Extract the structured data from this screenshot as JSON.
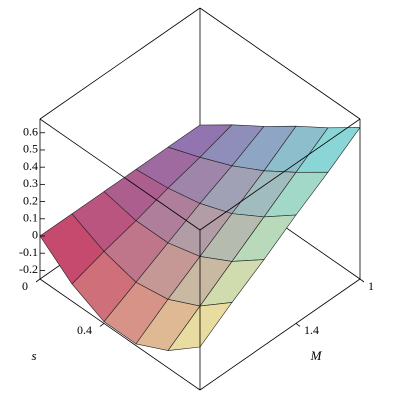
{
  "chart_data": {
    "type": "surface",
    "x_label": "s",
    "y_label": "M",
    "x": [
      0,
      0.2,
      0.4,
      0.6,
      0.8,
      1
    ],
    "y": [
      1,
      1.2,
      1.4,
      1.6,
      1.8,
      2
    ],
    "z": [
      [
        0,
        0.13,
        0.25,
        0.38,
        0.5,
        0.63
      ],
      [
        0,
        0.07,
        0.15,
        0.25,
        0.37,
        0.5
      ],
      [
        0,
        0.02,
        0.06,
        0.13,
        0.24,
        0.38
      ],
      [
        0,
        -0.04,
        -0.04,
        0.01,
        0.11,
        0.25
      ],
      [
        0,
        -0.09,
        -0.14,
        -0.11,
        -0.02,
        0.13
      ],
      [
        0,
        -0.15,
        -0.24,
        -0.24,
        -0.15,
        0
      ]
    ],
    "xlim": [
      0,
      1
    ],
    "ylim": [
      1,
      2
    ],
    "zlim": [
      -0.25,
      0.68
    ],
    "xticks": [
      0,
      0.4
    ],
    "yticks": [
      1,
      1.4
    ],
    "zticks": [
      -0.2,
      -0.1,
      0,
      0.1,
      0.2,
      0.3,
      0.4,
      0.5,
      0.6
    ]
  }
}
